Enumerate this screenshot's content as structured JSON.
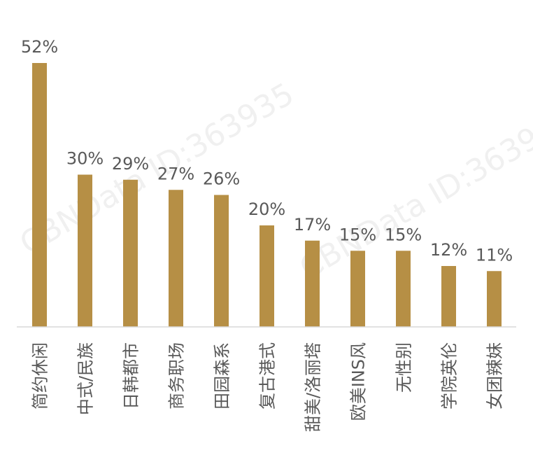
{
  "chart_data": {
    "type": "bar",
    "title": "",
    "xlabel": "",
    "ylabel": "",
    "categories": [
      "简约休闲",
      "中式/民族",
      "日韩都市",
      "商务职场",
      "田园森系",
      "复古港式",
      "甜美/洛丽塔",
      "欧美INS风",
      "无性别",
      "学院英伦",
      "女团辣妹"
    ],
    "values": [
      52,
      30,
      29,
      27,
      26,
      20,
      17,
      15,
      15,
      12,
      11
    ],
    "value_suffix": "%",
    "ylim": [
      0,
      52
    ],
    "grid": false,
    "legend": "none",
    "bar_color": "#b68f45",
    "label_color": "#595959",
    "axis_color": "#d9d9d9"
  },
  "watermark": {
    "text": "CBNData ID:363935"
  }
}
